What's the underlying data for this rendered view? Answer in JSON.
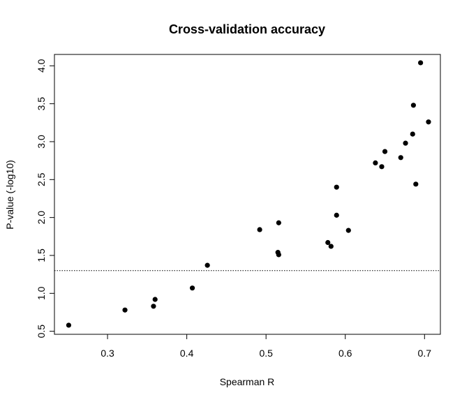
{
  "chart_data": {
    "type": "scatter",
    "title": "Cross-validation accuracy",
    "xlabel": "Spearman R",
    "ylabel": "P-value (-log10)",
    "xlim": [
      0.233,
      0.72
    ],
    "ylim": [
      0.46,
      4.15
    ],
    "x_ticks": [
      0.3,
      0.4,
      0.5,
      0.6,
      0.7
    ],
    "x_tick_labels": [
      "0.3",
      "0.4",
      "0.5",
      "0.6",
      "0.7"
    ],
    "y_ticks": [
      0.5,
      1.0,
      1.5,
      2.0,
      2.5,
      3.0,
      3.5,
      4.0
    ],
    "y_tick_labels": [
      "0.5",
      "1.0",
      "1.5",
      "2.0",
      "2.5",
      "3.0",
      "3.5",
      "4.0"
    ],
    "reference_line": {
      "y": 1.3,
      "style": "dotted"
    },
    "grid": false,
    "point_color": "#000000",
    "points": [
      {
        "x": 0.251,
        "y": 0.58
      },
      {
        "x": 0.322,
        "y": 0.78
      },
      {
        "x": 0.358,
        "y": 0.83
      },
      {
        "x": 0.36,
        "y": 0.92
      },
      {
        "x": 0.407,
        "y": 1.07
      },
      {
        "x": 0.426,
        "y": 1.37
      },
      {
        "x": 0.492,
        "y": 1.84
      },
      {
        "x": 0.515,
        "y": 1.54
      },
      {
        "x": 0.516,
        "y": 1.51
      },
      {
        "x": 0.516,
        "y": 1.93
      },
      {
        "x": 0.578,
        "y": 1.67
      },
      {
        "x": 0.582,
        "y": 1.62
      },
      {
        "x": 0.589,
        "y": 2.4
      },
      {
        "x": 0.589,
        "y": 2.03
      },
      {
        "x": 0.604,
        "y": 1.83
      },
      {
        "x": 0.638,
        "y": 2.72
      },
      {
        "x": 0.646,
        "y": 2.67
      },
      {
        "x": 0.65,
        "y": 2.87
      },
      {
        "x": 0.67,
        "y": 2.79
      },
      {
        "x": 0.676,
        "y": 2.98
      },
      {
        "x": 0.685,
        "y": 3.1
      },
      {
        "x": 0.686,
        "y": 3.48
      },
      {
        "x": 0.689,
        "y": 2.44
      },
      {
        "x": 0.695,
        "y": 4.04
      },
      {
        "x": 0.705,
        "y": 3.26
      }
    ]
  }
}
